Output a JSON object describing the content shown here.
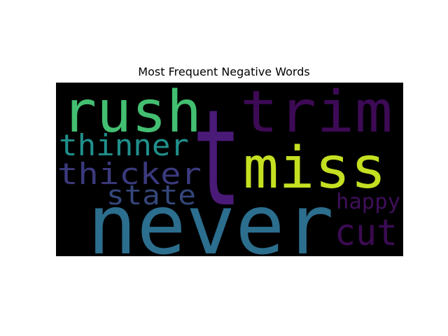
{
  "title": "Most Frequent Negative Words",
  "background_color": "#000000",
  "words": [
    {
      "text": "t",
      "color": "#4a1a78"
    },
    {
      "text": "never",
      "color": "#2c6e8e"
    },
    {
      "text": "rush",
      "color": "#43bf71"
    },
    {
      "text": "miss",
      "color": "#c5e021"
    },
    {
      "text": "trim",
      "color": "#3d0a55"
    },
    {
      "text": "thinner",
      "color": "#20908c"
    },
    {
      "text": "thicker",
      "color": "#3b3a7e"
    },
    {
      "text": "state",
      "color": "#35477c"
    },
    {
      "text": "happy",
      "color": "#3f0f5b"
    },
    {
      "text": "cut",
      "color": "#3b0b52"
    }
  ]
}
